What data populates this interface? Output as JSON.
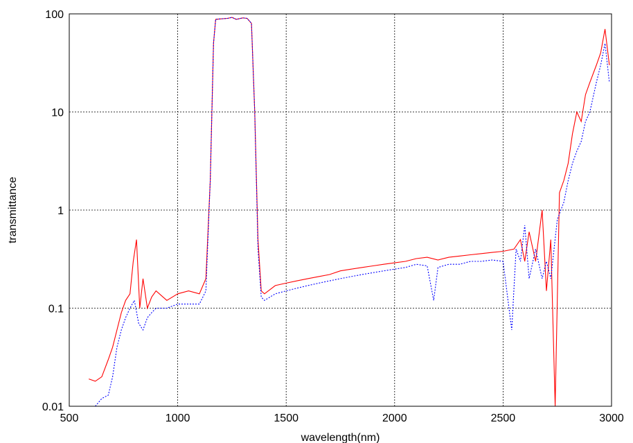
{
  "chart_data": {
    "type": "line",
    "title": "",
    "xlabel": "wavelength(nm)",
    "ylabel": "transmittance",
    "xlim": [
      500,
      3000
    ],
    "ylim": [
      0.01,
      100
    ],
    "yscale": "log",
    "grid": true,
    "x_ticks": [
      {
        "value": 500,
        "label": "500"
      },
      {
        "value": 1000,
        "label": "1000"
      },
      {
        "value": 1500,
        "label": "1500"
      },
      {
        "value": 2000,
        "label": "2000"
      },
      {
        "value": 2500,
        "label": "2500"
      },
      {
        "value": 3000,
        "label": "3000"
      }
    ],
    "y_ticks": [
      {
        "value": 0.01,
        "label": "0.01"
      },
      {
        "value": 0.1,
        "label": "0.1"
      },
      {
        "value": 1,
        "label": "1"
      },
      {
        "value": 10,
        "label": "10"
      },
      {
        "value": 100,
        "label": "100"
      }
    ],
    "series": [
      {
        "color": "#ff0000",
        "style": "solid",
        "points": [
          [
            590,
            0.019
          ],
          [
            620,
            0.018
          ],
          [
            650,
            0.02
          ],
          [
            680,
            0.03
          ],
          [
            700,
            0.04
          ],
          [
            720,
            0.06
          ],
          [
            740,
            0.09
          ],
          [
            760,
            0.12
          ],
          [
            780,
            0.14
          ],
          [
            795,
            0.3
          ],
          [
            810,
            0.5
          ],
          [
            825,
            0.1
          ],
          [
            840,
            0.2
          ],
          [
            860,
            0.1
          ],
          [
            880,
            0.13
          ],
          [
            900,
            0.15
          ],
          [
            950,
            0.12
          ],
          [
            1000,
            0.14
          ],
          [
            1050,
            0.15
          ],
          [
            1100,
            0.14
          ],
          [
            1130,
            0.2
          ],
          [
            1150,
            2
          ],
          [
            1165,
            50
          ],
          [
            1175,
            88
          ],
          [
            1200,
            89
          ],
          [
            1230,
            90
          ],
          [
            1250,
            92
          ],
          [
            1270,
            88
          ],
          [
            1300,
            91
          ],
          [
            1320,
            90
          ],
          [
            1340,
            80
          ],
          [
            1355,
            10
          ],
          [
            1370,
            0.5
          ],
          [
            1385,
            0.15
          ],
          [
            1400,
            0.14
          ],
          [
            1450,
            0.17
          ],
          [
            1500,
            0.18
          ],
          [
            1550,
            0.19
          ],
          [
            1600,
            0.2
          ],
          [
            1650,
            0.21
          ],
          [
            1700,
            0.22
          ],
          [
            1750,
            0.24
          ],
          [
            1800,
            0.25
          ],
          [
            1850,
            0.26
          ],
          [
            1900,
            0.27
          ],
          [
            1950,
            0.28
          ],
          [
            2000,
            0.29
          ],
          [
            2050,
            0.3
          ],
          [
            2100,
            0.32
          ],
          [
            2150,
            0.33
          ],
          [
            2200,
            0.31
          ],
          [
            2250,
            0.33
          ],
          [
            2300,
            0.34
          ],
          [
            2350,
            0.35
          ],
          [
            2400,
            0.36
          ],
          [
            2450,
            0.37
          ],
          [
            2500,
            0.38
          ],
          [
            2550,
            0.4
          ],
          [
            2580,
            0.5
          ],
          [
            2600,
            0.3
          ],
          [
            2620,
            0.6
          ],
          [
            2650,
            0.3
          ],
          [
            2680,
            1.0
          ],
          [
            2700,
            0.15
          ],
          [
            2720,
            0.5
          ],
          [
            2740,
            0.01
          ],
          [
            2760,
            1.5
          ],
          [
            2780,
            2
          ],
          [
            2800,
            3
          ],
          [
            2820,
            6
          ],
          [
            2840,
            10
          ],
          [
            2860,
            8
          ],
          [
            2880,
            15
          ],
          [
            2900,
            20
          ],
          [
            2930,
            30
          ],
          [
            2950,
            40
          ],
          [
            2970,
            70
          ],
          [
            2990,
            30
          ]
        ]
      },
      {
        "color": "#0000ff",
        "style": "dotted",
        "points": [
          [
            620,
            0.01
          ],
          [
            650,
            0.012
          ],
          [
            680,
            0.013
          ],
          [
            700,
            0.02
          ],
          [
            720,
            0.04
          ],
          [
            740,
            0.06
          ],
          [
            760,
            0.08
          ],
          [
            780,
            0.1
          ],
          [
            800,
            0.12
          ],
          [
            820,
            0.07
          ],
          [
            840,
            0.06
          ],
          [
            860,
            0.08
          ],
          [
            880,
            0.09
          ],
          [
            900,
            0.1
          ],
          [
            950,
            0.1
          ],
          [
            1000,
            0.11
          ],
          [
            1050,
            0.11
          ],
          [
            1100,
            0.11
          ],
          [
            1130,
            0.15
          ],
          [
            1150,
            2
          ],
          [
            1165,
            50
          ],
          [
            1175,
            88
          ],
          [
            1200,
            89
          ],
          [
            1230,
            90
          ],
          [
            1250,
            92
          ],
          [
            1270,
            88
          ],
          [
            1300,
            91
          ],
          [
            1320,
            90
          ],
          [
            1340,
            80
          ],
          [
            1355,
            10
          ],
          [
            1370,
            0.4
          ],
          [
            1385,
            0.13
          ],
          [
            1400,
            0.12
          ],
          [
            1450,
            0.14
          ],
          [
            1500,
            0.15
          ],
          [
            1550,
            0.16
          ],
          [
            1600,
            0.17
          ],
          [
            1650,
            0.18
          ],
          [
            1700,
            0.19
          ],
          [
            1750,
            0.2
          ],
          [
            1800,
            0.21
          ],
          [
            1850,
            0.22
          ],
          [
            1900,
            0.23
          ],
          [
            1950,
            0.24
          ],
          [
            2000,
            0.25
          ],
          [
            2050,
            0.26
          ],
          [
            2100,
            0.28
          ],
          [
            2150,
            0.27
          ],
          [
            2180,
            0.12
          ],
          [
            2200,
            0.26
          ],
          [
            2250,
            0.28
          ],
          [
            2300,
            0.28
          ],
          [
            2350,
            0.3
          ],
          [
            2400,
            0.3
          ],
          [
            2450,
            0.31
          ],
          [
            2500,
            0.3
          ],
          [
            2540,
            0.06
          ],
          [
            2560,
            0.4
          ],
          [
            2580,
            0.3
          ],
          [
            2600,
            0.7
          ],
          [
            2620,
            0.2
          ],
          [
            2650,
            0.4
          ],
          [
            2680,
            0.2
          ],
          [
            2700,
            0.3
          ],
          [
            2720,
            0.2
          ],
          [
            2750,
            0.8
          ],
          [
            2780,
            1.2
          ],
          [
            2800,
            2
          ],
          [
            2820,
            3
          ],
          [
            2840,
            4
          ],
          [
            2860,
            5
          ],
          [
            2880,
            8
          ],
          [
            2900,
            10
          ],
          [
            2930,
            20
          ],
          [
            2950,
            30
          ],
          [
            2970,
            50
          ],
          [
            2990,
            20
          ]
        ]
      }
    ]
  }
}
